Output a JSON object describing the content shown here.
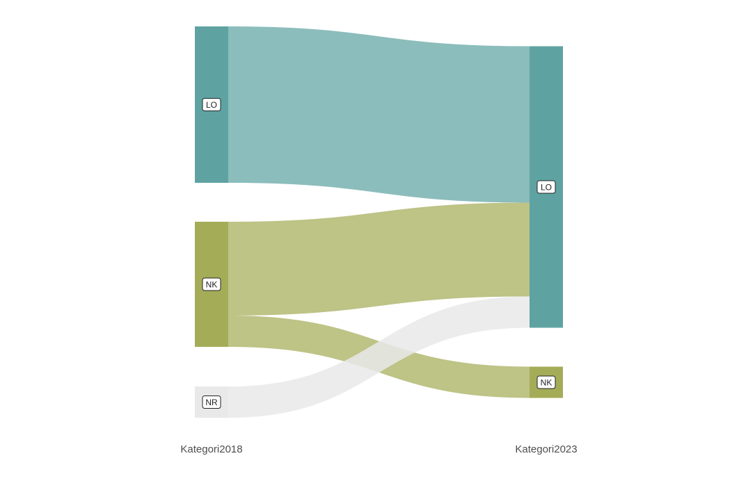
{
  "chart_data": {
    "type": "sankey",
    "title": "",
    "axes": [
      "Kategori2018",
      "Kategori2023"
    ],
    "nodes": {
      "Kategori2018": [
        "LO",
        "NK",
        "NR"
      ],
      "Kategori2023": [
        "LO",
        "NK"
      ]
    },
    "flows": [
      {
        "from": "LO",
        "to": "LO",
        "value": 45
      },
      {
        "from": "NK",
        "to": "LO",
        "value": 27
      },
      {
        "from": "NK",
        "to": "NK",
        "value": 9
      },
      {
        "from": "NR",
        "to": "LO",
        "value": 9
      }
    ],
    "colors": {
      "LO": "#5ea3a2",
      "NK": "#a5ac58",
      "NR": "#e9e9e9"
    },
    "flow_colors": {
      "LO": "#8bbcba",
      "NK": "#bdc386",
      "NR": "#eaeaea"
    }
  }
}
